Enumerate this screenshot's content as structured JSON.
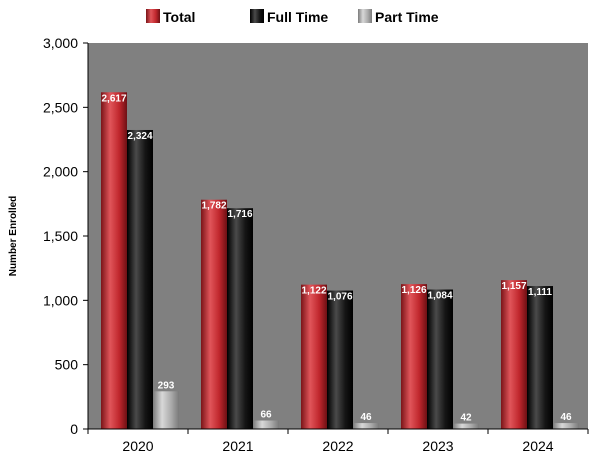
{
  "chart_data": {
    "type": "bar",
    "title": "",
    "xlabel": "",
    "ylabel": "Number Enrolled",
    "categories": [
      "2020",
      "2021",
      "2022",
      "2023",
      "2024"
    ],
    "series": [
      {
        "name": "Total",
        "values": [
          2617,
          1782,
          1122,
          1126,
          1157
        ],
        "labels": [
          "2,617",
          "1,782",
          "1,122",
          "1,126",
          "1,157"
        ],
        "color": "#c0272d"
      },
      {
        "name": "Full Time",
        "values": [
          2324,
          1716,
          1076,
          1084,
          1111
        ],
        "labels": [
          "2,324",
          "1,716",
          "1,076",
          "1,084",
          "1,111"
        ],
        "color": "#111111"
      },
      {
        "name": "Part Time",
        "values": [
          293,
          66,
          46,
          42,
          46
        ],
        "labels": [
          "293",
          "66",
          "46",
          "42",
          "46"
        ],
        "color": "#a8a8a8"
      }
    ],
    "ylim": [
      0,
      3000
    ],
    "yticks": [
      0,
      500,
      1000,
      1500,
      2000,
      2500,
      3000
    ],
    "ytick_labels": [
      "0",
      "500",
      "1,000",
      "1,500",
      "2,000",
      "2,500",
      "3,000"
    ],
    "legend_position": "top-center",
    "grid": false,
    "plot_background": "#808080"
  }
}
